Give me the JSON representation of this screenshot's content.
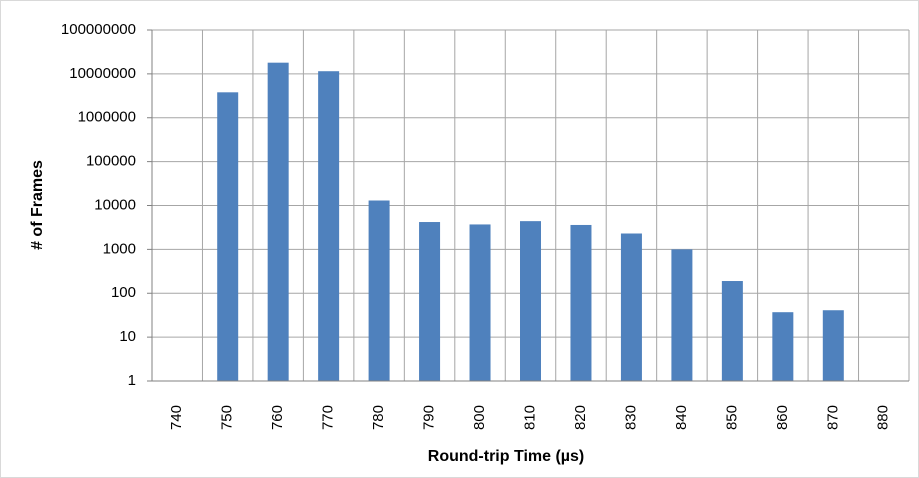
{
  "chart_data": {
    "type": "bar",
    "categories": [
      "740",
      "750",
      "760",
      "770",
      "780",
      "790",
      "800",
      "810",
      "820",
      "830",
      "840",
      "850",
      "860",
      "870",
      "880"
    ],
    "values": [
      null,
      3800000,
      18000000,
      11500000,
      13000,
      4200,
      3700,
      4400,
      3600,
      2300,
      1000,
      190,
      37,
      41,
      null
    ],
    "xlabel": "Round-trip Time (µs)",
    "ylabel": "# of Frames",
    "y_ticks": [
      "1",
      "10",
      "100",
      "1000",
      "10000",
      "100000",
      "1000000",
      "10000000",
      "100000000"
    ],
    "ylim": [
      1,
      100000000
    ],
    "y_scale": "log",
    "grid": true,
    "legend": "none",
    "series_color": "#4f81bd"
  }
}
